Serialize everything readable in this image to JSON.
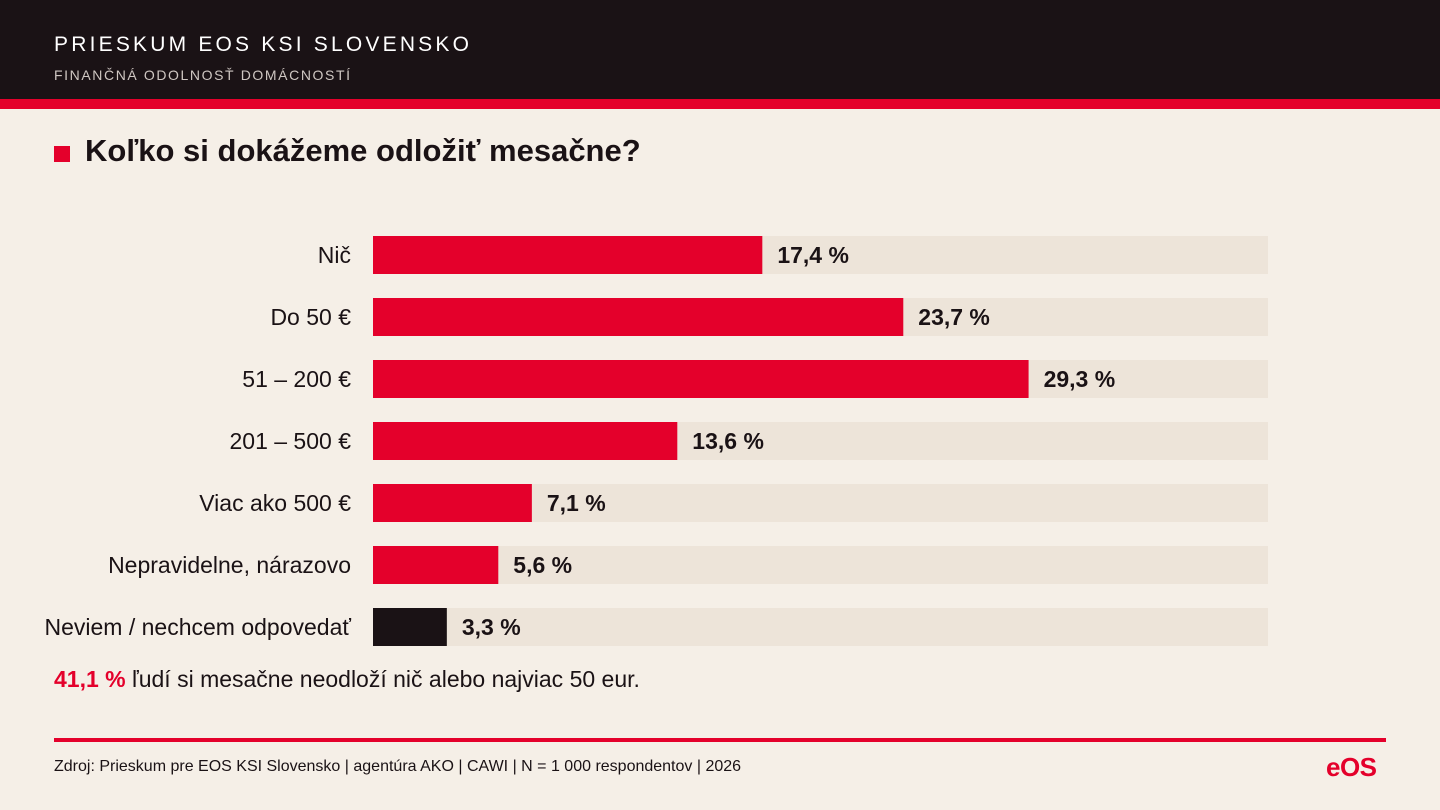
{
  "header": {
    "title": "PRIESKUM EOS KSI SLOVENSKO",
    "subtitle": "FINANČNÁ ODOLNOSŤ DOMÁCNOSTÍ"
  },
  "question": {
    "title": "Koľko si dokážeme odložiť mesačne?"
  },
  "chart_data": {
    "type": "bar",
    "orientation": "horizontal",
    "title": "Koľko si dokážeme odložiť mesačne?",
    "categories": [
      "Nič",
      "Do 50 €",
      "51 – 200 €",
      "201 – 500 €",
      "Viac ako 500 €",
      "Nepravidelne, nárazovo",
      "Neviem / nechcem odpovedať"
    ],
    "values": [
      17.4,
      23.7,
      29.3,
      13.6,
      7.1,
      5.6,
      3.3
    ],
    "value_labels": [
      "17,4 %",
      "23,7 %",
      "29,3 %",
      "13,6 %",
      "7,1 %",
      "5,6 %",
      "3,3 %"
    ],
    "xlim": [
      0,
      40
    ],
    "xlabel": "",
    "ylabel": "",
    "grid": false,
    "legend": "none",
    "colors": {
      "bar": "#e4002b",
      "bar_last": "#1a1215",
      "track": "#ede4d9"
    }
  },
  "note": {
    "highlight": "41,1 %",
    "text": " ľudí si mesačne neodloží nič alebo najviac 50 eur."
  },
  "footer": {
    "source": "Zdroj: Prieskum pre EOS KSI Slovensko | agentúra AKO | CAWI | N = 1 000 respondentov | 2026",
    "logo": "eOS"
  },
  "colors": {
    "accent": "#e4002b",
    "dark": "#1a1215",
    "background": "#f5efe7"
  }
}
